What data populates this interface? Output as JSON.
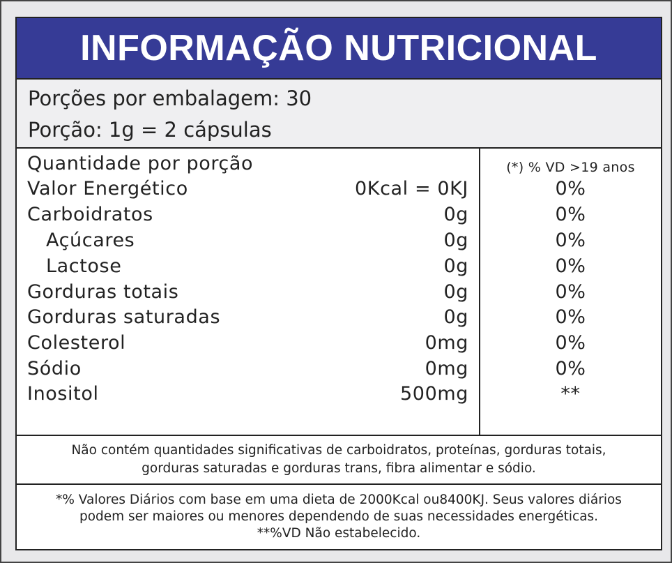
{
  "title": "INFORMAÇÃO NUTRICIONAL",
  "serving": {
    "portions": "Porções por embalagem: 30",
    "portion_size": "Porção: 1g = 2 cápsulas"
  },
  "table": {
    "header_label": "Quantidade por porção",
    "header_vd": "(*) % VD  >19 anos",
    "rows": [
      {
        "label": "Valor Energético",
        "amount": "0Kcal = 0KJ",
        "vd": "0%"
      },
      {
        "label": "Carboidratos",
        "amount": "0g",
        "vd": "0%"
      },
      {
        "label": "Açúcares",
        "amount": "0g",
        "vd": "0%"
      },
      {
        "label": "Lactose",
        "amount": "0g",
        "vd": "0%"
      },
      {
        "label": "Gorduras totais",
        "amount": "0g",
        "vd": "0%"
      },
      {
        "label": "Gorduras saturadas",
        "amount": "0g",
        "vd": "0%"
      },
      {
        "label": "Colesterol",
        "amount": "0mg",
        "vd": "0%"
      },
      {
        "label": "Sódio",
        "amount": "0mg",
        "vd": "0%"
      },
      {
        "label": "Inositol",
        "amount": "500mg",
        "vd": "**"
      }
    ]
  },
  "note_absence": {
    "line1": "Não contém quantidades significativas de carboidratos, proteínas, gorduras totais,",
    "line2": "gorduras saturadas e gorduras trans, fibra alimentar e sódio."
  },
  "note_vd": {
    "line1": "*% Valores Diários com base em uma dieta de 2000Kcal ou8400KJ. Seus valores diários",
    "line2": "podem ser maiores ou menores dependendo de suas necessidades energéticas.",
    "line3": "**%VD Não estabelecido."
  },
  "colors": {
    "header_bg": "#363b96",
    "header_text": "#ffffff",
    "serving_bg": "#efeff1"
  }
}
